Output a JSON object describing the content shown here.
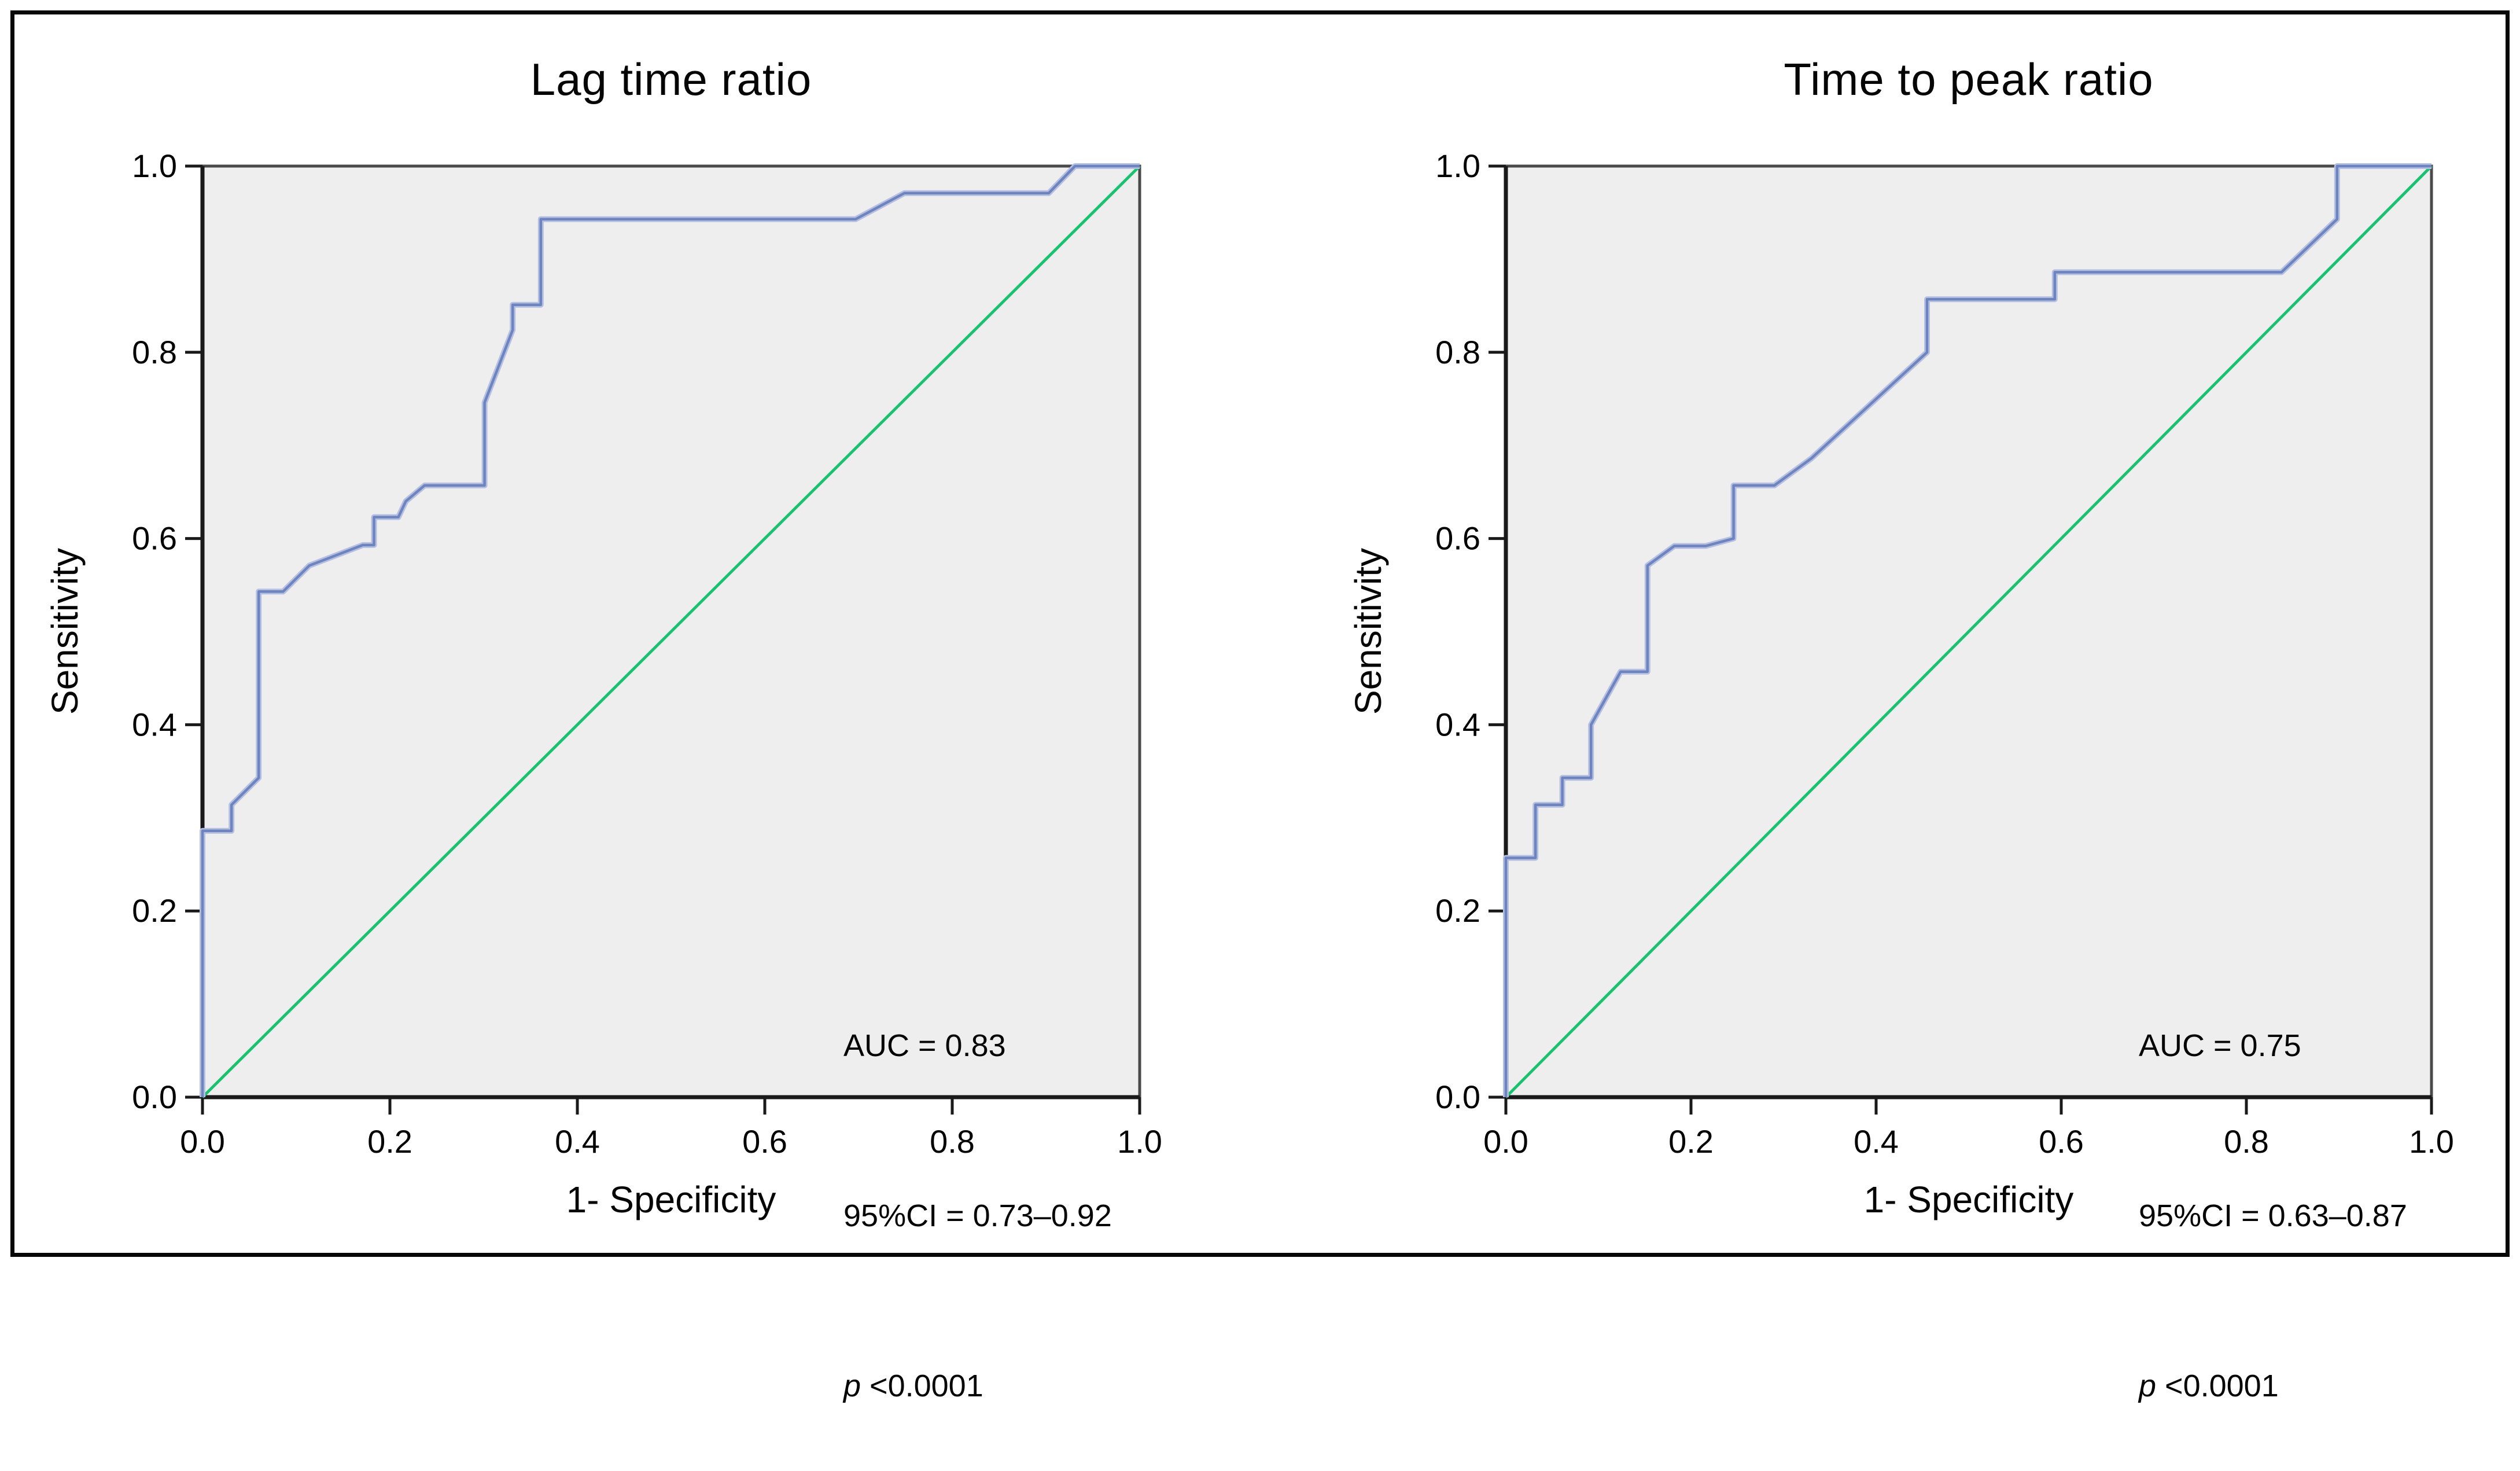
{
  "figure": {
    "background": "#ffffff",
    "border_color": "#070707"
  },
  "colors": {
    "plot_bg": "#efeeee",
    "frame": "#4a4a4a",
    "axis": "#1a1a1a",
    "tick_text": "#000000",
    "roc_line": "#6e84c1",
    "roc_halo": "#b5c0e0",
    "diagonal": "#17c36e",
    "text": "#050505"
  },
  "chart_data": [
    {
      "type": "line",
      "title": "Lag time ratio",
      "xlabel": "1- Specificity",
      "ylabel": "Sensitivity",
      "xlim": [
        0,
        1
      ],
      "ylim": [
        0,
        1
      ],
      "grid": false,
      "legend": "none",
      "xticks": [
        0,
        0.2,
        0.4,
        0.6,
        0.8,
        1.0
      ],
      "yticks": [
        0,
        0.2,
        0.4,
        0.6,
        0.8,
        1.0
      ],
      "xtick_labels": [
        "0.0",
        "0.2",
        "0.4",
        "0.6",
        "0.8",
        "1.0"
      ],
      "ytick_labels": [
        "0.0",
        "0.2",
        "0.4",
        "0.6",
        "0.8",
        "1.0"
      ],
      "series": [
        {
          "name": "ROC curve",
          "color": "#6e84c1",
          "points": [
            [
              0,
              0
            ],
            [
              0,
              0.286
            ],
            [
              0.031,
              0.286
            ],
            [
              0.031,
              0.314
            ],
            [
              0.06,
              0.343
            ],
            [
              0.06,
              0.543
            ],
            [
              0.086,
              0.543
            ],
            [
              0.114,
              0.571
            ],
            [
              0.14,
              0.581
            ],
            [
              0.171,
              0.593
            ],
            [
              0.183,
              0.593
            ],
            [
              0.183,
              0.623
            ],
            [
              0.209,
              0.623
            ],
            [
              0.217,
              0.64
            ],
            [
              0.237,
              0.657
            ],
            [
              0.301,
              0.657
            ],
            [
              0.301,
              0.746
            ],
            [
              0.331,
              0.824
            ],
            [
              0.331,
              0.851
            ],
            [
              0.361,
              0.851
            ],
            [
              0.361,
              0.943
            ],
            [
              0.697,
              0.943
            ],
            [
              0.749,
              0.971
            ],
            [
              0.903,
              0.971
            ],
            [
              0.931,
              1
            ],
            [
              1,
              1
            ]
          ]
        },
        {
          "name": "Reference diagonal",
          "color": "#17c36e",
          "points": [
            [
              0,
              0
            ],
            [
              1,
              1
            ]
          ]
        }
      ],
      "annotation": {
        "auc": "AUC = 0.83",
        "ci": "95%CI = 0.73–0.92",
        "p_symbol": "p",
        "p_rest": " <0.0001"
      }
    },
    {
      "type": "line",
      "title": "Time to peak ratio",
      "xlabel": "1- Specificity",
      "ylabel": "Sensitivity",
      "xlim": [
        0,
        1
      ],
      "ylim": [
        0,
        1
      ],
      "grid": false,
      "legend": "none",
      "xticks": [
        0,
        0.2,
        0.4,
        0.6,
        0.8,
        1.0
      ],
      "yticks": [
        0,
        0.2,
        0.4,
        0.6,
        0.8,
        1.0
      ],
      "xtick_labels": [
        "0.0",
        "0.2",
        "0.4",
        "0.6",
        "0.8",
        "1.0"
      ],
      "ytick_labels": [
        "0.0",
        "0.2",
        "0.4",
        "0.6",
        "0.8",
        "1.0"
      ],
      "series": [
        {
          "name": "ROC curve",
          "color": "#6e84c1",
          "points": [
            [
              0,
              0
            ],
            [
              0,
              0.257
            ],
            [
              0.032,
              0.257
            ],
            [
              0.032,
              0.314
            ],
            [
              0.061,
              0.314
            ],
            [
              0.061,
              0.343
            ],
            [
              0.092,
              0.343
            ],
            [
              0.092,
              0.4
            ],
            [
              0.124,
              0.457
            ],
            [
              0.153,
              0.457
            ],
            [
              0.153,
              0.571
            ],
            [
              0.182,
              0.592
            ],
            [
              0.216,
              0.592
            ],
            [
              0.246,
              0.6
            ],
            [
              0.246,
              0.657
            ],
            [
              0.29,
              0.657
            ],
            [
              0.33,
              0.686
            ],
            [
              0.455,
              0.8
            ],
            [
              0.455,
              0.857
            ],
            [
              0.593,
              0.857
            ],
            [
              0.593,
              0.886
            ],
            [
              0.838,
              0.886
            ],
            [
              0.898,
              0.943
            ],
            [
              0.898,
              1
            ],
            [
              1,
              1
            ]
          ]
        },
        {
          "name": "Reference diagonal",
          "color": "#17c36e",
          "points": [
            [
              0,
              0
            ],
            [
              1,
              1
            ]
          ]
        }
      ],
      "annotation": {
        "auc": "AUC = 0.75",
        "ci": "95%CI = 0.63–0.87",
        "p_symbol": "p",
        "p_rest": " <0.0001"
      }
    }
  ]
}
